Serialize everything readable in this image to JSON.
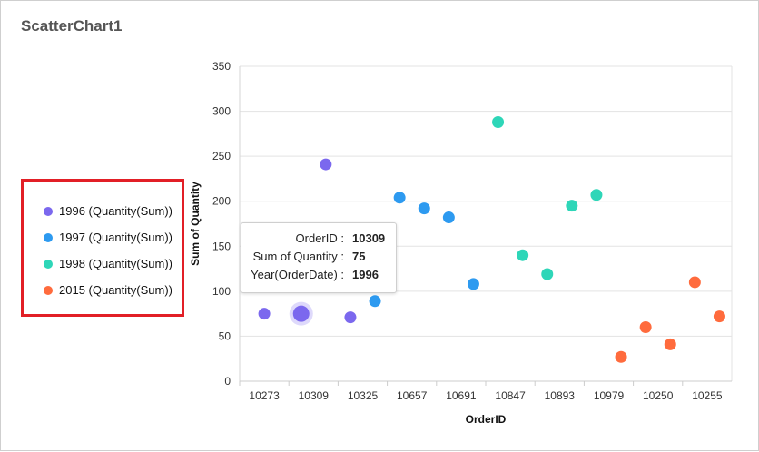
{
  "widget": {
    "title": "ScatterChart1"
  },
  "legend": {
    "items": [
      {
        "label": "1996 (Quantity(Sum))",
        "color": "#7B68EE"
      },
      {
        "label": "1997 (Quantity(Sum))",
        "color": "#2D9AF0"
      },
      {
        "label": "1998 (Quantity(Sum))",
        "color": "#2ED6B8"
      },
      {
        "label": "2015 (Quantity(Sum))",
        "color": "#FF6B3D"
      }
    ]
  },
  "tooltip": {
    "rows": [
      {
        "label": "OrderID :",
        "value": "10309"
      },
      {
        "label": "Sum of Quantity :",
        "value": "75"
      },
      {
        "label": "Year(OrderDate) :",
        "value": "1996"
      }
    ]
  },
  "chart_data": {
    "type": "scatter",
    "xlabel": "OrderID",
    "ylabel": "Sum of Quantity",
    "ylim": [
      0,
      350
    ],
    "yticks": [
      0,
      50,
      100,
      150,
      200,
      250,
      300,
      350
    ],
    "x_tick_labels": [
      "10273",
      "10309",
      "10325",
      "10657",
      "10691",
      "10847",
      "10893",
      "10979",
      "10250",
      "10255"
    ],
    "grid": true,
    "highlighted_point": {
      "series": "1996 (Quantity(Sum))",
      "x": "10309",
      "y": 75
    },
    "series": [
      {
        "name": "1996 (Quantity(Sum))",
        "color": "#7B68EE",
        "points": [
          {
            "x": "10273",
            "y": 75
          },
          {
            "x": "10309",
            "y": 75
          },
          {
            "x": "10309",
            "y": 241
          },
          {
            "x": "10325",
            "y": 71
          }
        ]
      },
      {
        "name": "1997 (Quantity(Sum))",
        "color": "#2D9AF0",
        "points": [
          {
            "x": "10325",
            "y": 89
          },
          {
            "x": "10657",
            "y": 204
          },
          {
            "x": "10657",
            "y": 192
          },
          {
            "x": "10691",
            "y": 182
          },
          {
            "x": "10691",
            "y": 108
          }
        ]
      },
      {
        "name": "1998 (Quantity(Sum))",
        "color": "#2ED6B8",
        "points": [
          {
            "x": "10847",
            "y": 288
          },
          {
            "x": "10847",
            "y": 140
          },
          {
            "x": "10893",
            "y": 119
          },
          {
            "x": "10893",
            "y": 195
          },
          {
            "x": "10979",
            "y": 207
          }
        ]
      },
      {
        "name": "2015 (Quantity(Sum))",
        "color": "#FF6B3D",
        "points": [
          {
            "x": "10979",
            "y": 27
          },
          {
            "x": "10250",
            "y": 60
          },
          {
            "x": "10250",
            "y": 41
          },
          {
            "x": "10255",
            "y": 110
          },
          {
            "x": "10255",
            "y": 72
          }
        ]
      }
    ]
  }
}
